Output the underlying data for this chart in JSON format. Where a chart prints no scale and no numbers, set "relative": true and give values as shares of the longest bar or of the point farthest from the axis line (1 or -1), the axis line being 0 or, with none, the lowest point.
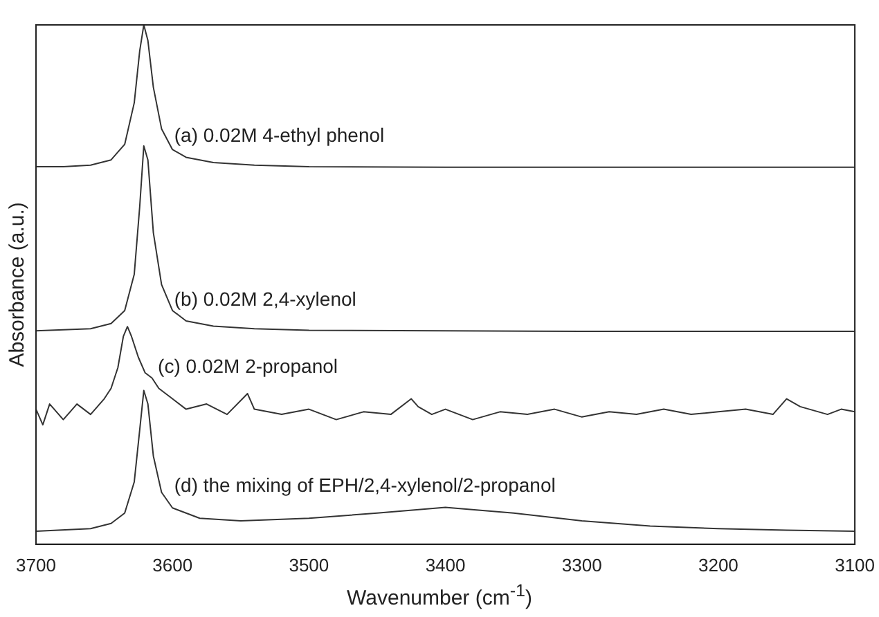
{
  "chart_data": {
    "type": "line",
    "relative": true,
    "xlabel": "Wavenumber (cm$^{-1}$)",
    "ylabel": "Absorbance (a.u.)",
    "xlim": [
      3700,
      3100
    ],
    "xticks": [
      3700,
      3600,
      3500,
      3400,
      3300,
      3200,
      3100
    ],
    "grid": false,
    "legend": false,
    "marker": "none",
    "line_style": "solid",
    "tick_labels": "x",
    "series": [
      {
        "name": "(a) 0.02M 4-ethyl phenol",
        "color": "#333333",
        "x": [
          3700,
          3680,
          3660,
          3645,
          3635,
          3628,
          3624,
          3621,
          3618,
          3614,
          3608,
          3600,
          3590,
          3570,
          3540,
          3500,
          3400,
          3300,
          3200,
          3100
        ],
        "values": [
          0.727,
          0.727,
          0.73,
          0.74,
          0.77,
          0.85,
          0.95,
          1.0,
          0.97,
          0.88,
          0.8,
          0.76,
          0.745,
          0.735,
          0.73,
          0.727,
          0.726,
          0.726,
          0.726,
          0.726
        ]
      },
      {
        "name": "(b) 0.02M 2,4-xylenol",
        "color": "#333333",
        "x": [
          3700,
          3660,
          3645,
          3635,
          3628,
          3624,
          3621,
          3618,
          3614,
          3608,
          3600,
          3590,
          3570,
          3540,
          3500,
          3400,
          3300,
          3200,
          3100
        ],
        "values": [
          0.411,
          0.415,
          0.425,
          0.45,
          0.52,
          0.65,
          0.767,
          0.74,
          0.6,
          0.5,
          0.45,
          0.43,
          0.42,
          0.415,
          0.412,
          0.411,
          0.41,
          0.41,
          0.41
        ]
      },
      {
        "name": "(c) 0.02M 2-propanol",
        "color": "#333333",
        "x": [
          3700,
          3695,
          3690,
          3680,
          3670,
          3660,
          3650,
          3645,
          3640,
          3636,
          3633,
          3630,
          3625,
          3620,
          3615,
          3610,
          3600,
          3590,
          3575,
          3560,
          3545,
          3540,
          3520,
          3500,
          3480,
          3460,
          3440,
          3425,
          3420,
          3410,
          3400,
          3380,
          3360,
          3340,
          3320,
          3300,
          3280,
          3260,
          3240,
          3220,
          3200,
          3180,
          3160,
          3150,
          3140,
          3120,
          3110,
          3100
        ],
        "values": [
          0.26,
          0.23,
          0.27,
          0.24,
          0.27,
          0.25,
          0.28,
          0.3,
          0.34,
          0.4,
          0.419,
          0.4,
          0.36,
          0.33,
          0.32,
          0.3,
          0.28,
          0.26,
          0.27,
          0.25,
          0.29,
          0.26,
          0.25,
          0.26,
          0.24,
          0.255,
          0.25,
          0.28,
          0.265,
          0.25,
          0.26,
          0.24,
          0.255,
          0.25,
          0.26,
          0.245,
          0.255,
          0.25,
          0.26,
          0.25,
          0.255,
          0.26,
          0.25,
          0.28,
          0.265,
          0.25,
          0.26,
          0.255
        ]
      },
      {
        "name": "(d) the mixing of EPH/2,4-xylenol/2-propanol",
        "color": "#333333",
        "x": [
          3700,
          3660,
          3645,
          3635,
          3628,
          3624,
          3621,
          3618,
          3614,
          3608,
          3600,
          3580,
          3550,
          3500,
          3450,
          3400,
          3350,
          3300,
          3250,
          3200,
          3150,
          3100
        ],
        "values": [
          0.025,
          0.03,
          0.04,
          0.06,
          0.12,
          0.22,
          0.296,
          0.27,
          0.17,
          0.1,
          0.07,
          0.05,
          0.045,
          0.05,
          0.06,
          0.071,
          0.06,
          0.045,
          0.035,
          0.03,
          0.027,
          0.025
        ]
      }
    ]
  }
}
